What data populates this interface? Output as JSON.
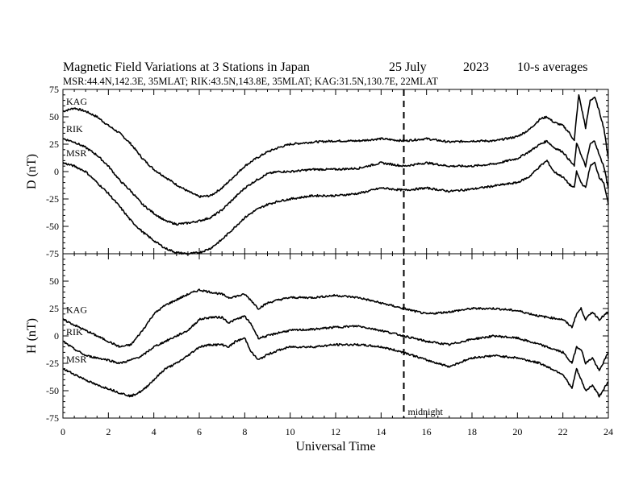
{
  "header": {
    "title": "Magnetic Field Variations at 3 Stations in Japan",
    "date": "25 July",
    "year": "2023",
    "averaging": "10-s averages",
    "stations_line": "MSR:44.4N,142.3E, 35MLAT;  RIK:43.5N,143.8E, 35MLAT;  KAG:31.5N,130.7E, 22MLAT"
  },
  "annotations": {
    "midnight": "midnight",
    "midnight_ut": 15
  },
  "chart_data": [
    {
      "type": "line",
      "panel": "D",
      "ylabel": "D (nT)",
      "xlabel": "",
      "xlim": [
        0,
        24
      ],
      "ylim": [
        -75,
        75
      ],
      "yticks": [
        75,
        50,
        25,
        0,
        -25,
        -50,
        -75
      ],
      "series": [
        {
          "name": "KAG",
          "x": [
            0,
            0.5,
            1,
            1.5,
            2,
            2.5,
            3,
            3.5,
            4,
            4.5,
            5,
            5.5,
            6,
            6.5,
            7,
            7.5,
            8,
            8.5,
            9,
            9.5,
            10,
            11,
            12,
            13,
            14,
            15,
            16,
            17,
            18,
            19,
            20,
            20.5,
            21,
            21.3,
            21.6,
            22,
            22.3,
            22.5,
            22.6,
            22.7,
            22.8,
            23,
            23.2,
            23.4,
            23.6,
            23.8,
            24
          ],
          "y": [
            55,
            58,
            55,
            50,
            42,
            35,
            25,
            12,
            2,
            -5,
            -12,
            -18,
            -23,
            -22,
            -15,
            -5,
            5,
            12,
            18,
            22,
            25,
            27,
            28,
            28,
            30,
            28,
            30,
            27,
            28,
            28,
            32,
            38,
            48,
            50,
            45,
            42,
            35,
            28,
            50,
            70,
            60,
            40,
            65,
            68,
            55,
            40,
            12
          ]
        },
        {
          "name": "RIK",
          "x": [
            0,
            0.5,
            1,
            1.5,
            2,
            2.5,
            3,
            3.5,
            4,
            4.5,
            5,
            5.5,
            6,
            6.5,
            7,
            7.5,
            8,
            8.5,
            9,
            9.5,
            10,
            11,
            12,
            13,
            14,
            15,
            16,
            17,
            18,
            19,
            20,
            20.5,
            21,
            21.3,
            21.6,
            22,
            22.3,
            22.5,
            22.6,
            22.7,
            22.8,
            23,
            23.2,
            23.4,
            23.6,
            23.8,
            24
          ],
          "y": [
            30,
            27,
            22,
            15,
            5,
            -8,
            -18,
            -30,
            -38,
            -45,
            -48,
            -47,
            -45,
            -42,
            -35,
            -25,
            -15,
            -8,
            -2,
            0,
            0,
            2,
            2,
            3,
            8,
            5,
            8,
            5,
            5,
            7,
            12,
            18,
            25,
            28,
            22,
            18,
            10,
            5,
            25,
            22,
            15,
            5,
            25,
            28,
            15,
            5,
            -15
          ]
        },
        {
          "name": "MSR",
          "x": [
            0,
            0.5,
            1,
            1.5,
            2,
            2.5,
            3,
            3.5,
            4,
            4.5,
            5,
            5.5,
            6,
            6.5,
            7,
            7.5,
            8,
            8.5,
            9,
            9.5,
            10,
            11,
            12,
            13,
            14,
            15,
            16,
            17,
            18,
            19,
            20,
            20.5,
            21,
            21.3,
            21.6,
            22,
            22.3,
            22.5,
            22.6,
            22.7,
            22.8,
            23,
            23.2,
            23.4,
            23.6,
            23.8,
            24
          ],
          "y": [
            8,
            5,
            0,
            -10,
            -20,
            -32,
            -45,
            -55,
            -63,
            -70,
            -74,
            -75,
            -74,
            -70,
            -62,
            -52,
            -42,
            -35,
            -30,
            -27,
            -25,
            -22,
            -22,
            -20,
            -15,
            -17,
            -15,
            -18,
            -16,
            -13,
            -10,
            -5,
            5,
            10,
            0,
            -5,
            -12,
            -15,
            0,
            -5,
            -10,
            -15,
            5,
            8,
            -5,
            -10,
            -30
          ]
        }
      ]
    },
    {
      "type": "line",
      "panel": "H",
      "ylabel": "H (nT)",
      "xlabel": "Universal Time",
      "xlim": [
        0,
        24
      ],
      "ylim": [
        -75,
        75
      ],
      "yticks": [
        50,
        25,
        0,
        -25,
        -50,
        -75
      ],
      "xticks": [
        0,
        2,
        4,
        6,
        8,
        10,
        12,
        14,
        16,
        18,
        20,
        22,
        24
      ],
      "series": [
        {
          "name": "KAG",
          "x": [
            0,
            0.5,
            1,
            1.5,
            2,
            2.5,
            3,
            3.5,
            4,
            4.5,
            5,
            5.5,
            6,
            6.5,
            7,
            7.3,
            7.6,
            8,
            8.3,
            8.6,
            9,
            9.5,
            10,
            11,
            12,
            13,
            14,
            15,
            16,
            17,
            18,
            19,
            20,
            21,
            22,
            22.4,
            22.6,
            22.8,
            23,
            23.3,
            23.6,
            24
          ],
          "y": [
            15,
            10,
            5,
            0,
            -5,
            -10,
            -8,
            5,
            20,
            28,
            33,
            38,
            42,
            40,
            38,
            35,
            36,
            38,
            32,
            25,
            30,
            33,
            35,
            35,
            37,
            35,
            30,
            25,
            20,
            22,
            25,
            25,
            23,
            18,
            15,
            8,
            20,
            25,
            15,
            22,
            15,
            22
          ]
        },
        {
          "name": "RIK",
          "x": [
            0,
            0.5,
            1,
            1.5,
            2,
            2.5,
            3,
            3.5,
            4,
            4.5,
            5,
            5.5,
            6,
            6.5,
            7,
            7.3,
            7.6,
            8,
            8.3,
            8.6,
            9,
            9.5,
            10,
            11,
            12,
            13,
            14,
            15,
            16,
            17,
            18,
            19,
            20,
            21,
            22,
            22.4,
            22.6,
            22.8,
            23,
            23.3,
            23.6,
            24
          ],
          "y": [
            -5,
            -12,
            -18,
            -20,
            -22,
            -25,
            -22,
            -18,
            -10,
            -5,
            0,
            5,
            15,
            17,
            17,
            12,
            15,
            18,
            10,
            -2,
            0,
            3,
            5,
            6,
            8,
            9,
            5,
            0,
            -5,
            -8,
            -3,
            0,
            -2,
            -8,
            -15,
            -25,
            -10,
            -12,
            -25,
            -20,
            -32,
            -15
          ]
        },
        {
          "name": "MSR",
          "x": [
            0,
            0.5,
            1,
            1.5,
            2,
            2.5,
            3,
            3.5,
            4,
            4.5,
            5,
            5.5,
            6,
            6.5,
            7,
            7.3,
            7.6,
            8,
            8.3,
            8.6,
            9,
            9.5,
            10,
            11,
            12,
            13,
            14,
            15,
            16,
            17,
            18,
            19,
            20,
            21,
            22,
            22.4,
            22.6,
            22.8,
            23,
            23.3,
            23.6,
            24
          ],
          "y": [
            -30,
            -35,
            -40,
            -45,
            -48,
            -52,
            -55,
            -50,
            -40,
            -30,
            -25,
            -18,
            -10,
            -8,
            -8,
            -10,
            -5,
            -2,
            -15,
            -22,
            -17,
            -13,
            -10,
            -10,
            -8,
            -8,
            -10,
            -15,
            -22,
            -28,
            -20,
            -18,
            -20,
            -25,
            -35,
            -48,
            -30,
            -40,
            -50,
            -45,
            -55,
            -42
          ]
        }
      ]
    }
  ]
}
